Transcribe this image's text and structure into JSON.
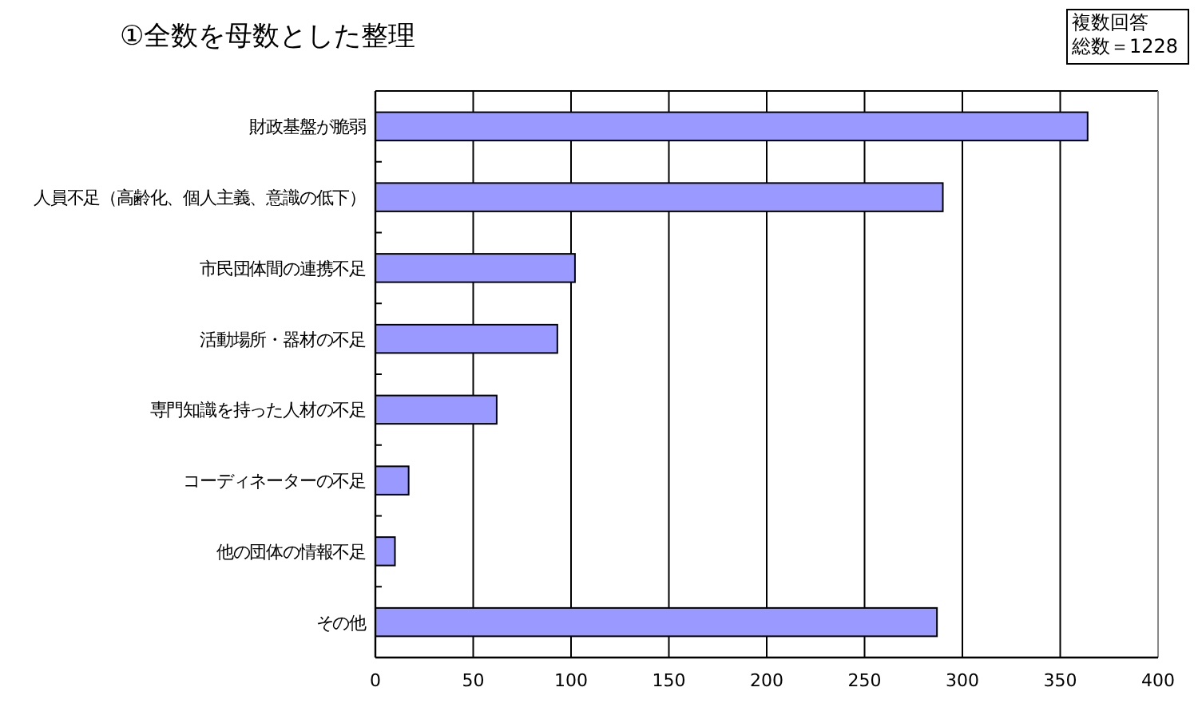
{
  "chart_data": {
    "type": "bar",
    "orientation": "horizontal",
    "title": "①全数を母数とした整理",
    "annotations": [
      "複数回答",
      "総数＝1228"
    ],
    "categories": [
      "財政基盤が脆弱",
      "人員不足（高齢化、個人主義、意識の低下）",
      "市民団体間の連携不足",
      "活動場所・器材の不足",
      "専門知識を持った人材の不足",
      "コーディネーターの不足",
      "他の団体の情報不足",
      "その他"
    ],
    "values": [
      364,
      290,
      102,
      93,
      62,
      17,
      10,
      287
    ],
    "color": "#9999ff",
    "xlim": [
      0,
      400
    ],
    "xticks": [
      0,
      50,
      100,
      150,
      200,
      250,
      300,
      350,
      400
    ],
    "grid": "x"
  }
}
